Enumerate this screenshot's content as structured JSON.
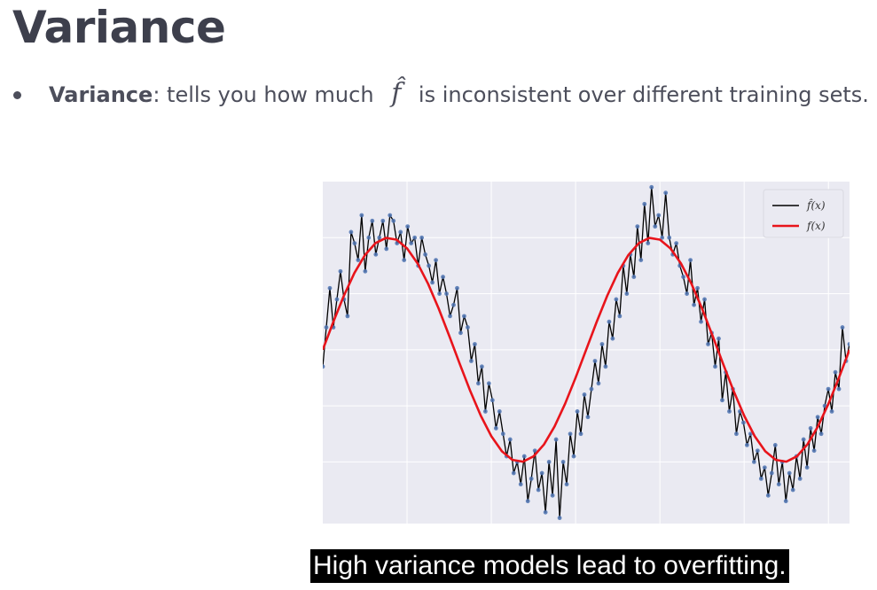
{
  "slide": {
    "title": "Variance",
    "bullet": {
      "term": "Variance",
      "text_before": ": tells you how much ",
      "symbol": "f̂",
      "text_after": " is inconsistent over different training sets."
    },
    "caption": "High variance models lead to overfitting."
  },
  "chart_data": {
    "type": "line",
    "title": "",
    "xlabel": "",
    "ylabel": "",
    "grid": true,
    "legend_placement": "top-right",
    "xlim": [
      0,
      1
    ],
    "ylim": [
      -1.55,
      1.5
    ],
    "series": [
      {
        "name": "f̂(x)",
        "color": "#000000",
        "style": "noisy line through sample points (blue markers)",
        "values": [
          -0.15,
          0.2,
          0.55,
          0.2,
          0.45,
          0.7,
          0.45,
          0.3,
          1.05,
          0.95,
          0.8,
          1.2,
          0.7,
          1.0,
          1.15,
          0.85,
          1.0,
          1.15,
          0.9,
          1.2,
          1.15,
          0.95,
          1.05,
          0.8,
          1.1,
          0.95,
          1.0,
          0.75,
          1.0,
          0.85,
          0.75,
          0.6,
          0.8,
          0.5,
          0.65,
          0.5,
          0.3,
          0.4,
          0.55,
          0.15,
          0.3,
          0.2,
          -0.1,
          0.05,
          -0.3,
          -0.15,
          -0.55,
          -0.3,
          -0.45,
          -0.7,
          -0.55,
          -0.75,
          -0.95,
          -0.8,
          -1.1,
          -1.0,
          -1.2,
          -0.95,
          -1.35,
          -1.15,
          -0.9,
          -1.25,
          -1.1,
          -1.45,
          -1.0,
          -1.3,
          -0.8,
          -1.5,
          -1.0,
          -1.2,
          -0.75,
          -0.95,
          -0.55,
          -0.75,
          -0.4,
          -0.6,
          -0.35,
          -0.1,
          -0.3,
          0.05,
          -0.15,
          0.25,
          0.1,
          0.45,
          0.3,
          0.75,
          0.5,
          0.85,
          0.65,
          1.1,
          0.8,
          1.3,
          0.95,
          1.45,
          1.1,
          1.2,
          1.0,
          1.4,
          1.0,
          0.85,
          0.95,
          0.75,
          0.65,
          0.5,
          0.8,
          0.4,
          0.55,
          0.25,
          0.45,
          0.05,
          0.15,
          -0.15,
          0.1,
          -0.45,
          -0.2,
          -0.55,
          -0.35,
          -0.75,
          -0.55,
          -0.65,
          -0.85,
          -0.75,
          -1.0,
          -0.9,
          -1.15,
          -1.05,
          -1.3,
          -1.1,
          -0.85,
          -1.2,
          -1.0,
          -1.35,
          -1.1,
          -1.25,
          -0.95,
          -1.15,
          -0.8,
          -1.05,
          -0.7,
          -0.9,
          -0.6,
          -0.75,
          -0.5,
          -0.35,
          -0.55,
          -0.2,
          -0.35,
          0.2,
          -0.1,
          0.05
        ]
      },
      {
        "name": "f(x)",
        "color": "#e8141b",
        "style": "smooth sine curve",
        "function": "sin(2*pi*2*x)",
        "values": [
          0.0,
          0.2487,
          0.4818,
          0.6845,
          0.8443,
          0.9511,
          0.998,
          0.9823,
          0.9048,
          0.7705,
          0.5878,
          0.3681,
          0.1253,
          -0.1253,
          -0.3681,
          -0.5878,
          -0.7705,
          -0.9048,
          -0.9823,
          -0.998,
          -0.9511,
          -0.8443,
          -0.6845,
          -0.4818,
          -0.2487,
          0.0,
          0.2487,
          0.4818,
          0.6845,
          0.8443,
          0.9511,
          0.998,
          0.9823,
          0.9048,
          0.7705,
          0.5878,
          0.3681,
          0.1253,
          -0.1253,
          -0.3681,
          -0.5878,
          -0.7705,
          -0.9048,
          -0.9823,
          -0.998,
          -0.9511,
          -0.8443,
          -0.6845,
          -0.4818,
          -0.2487,
          0.0
        ]
      }
    ],
    "colors": {
      "plot_background": "#eaeaf2",
      "grid": "#ffffff",
      "marker": "#4c72b0"
    }
  }
}
